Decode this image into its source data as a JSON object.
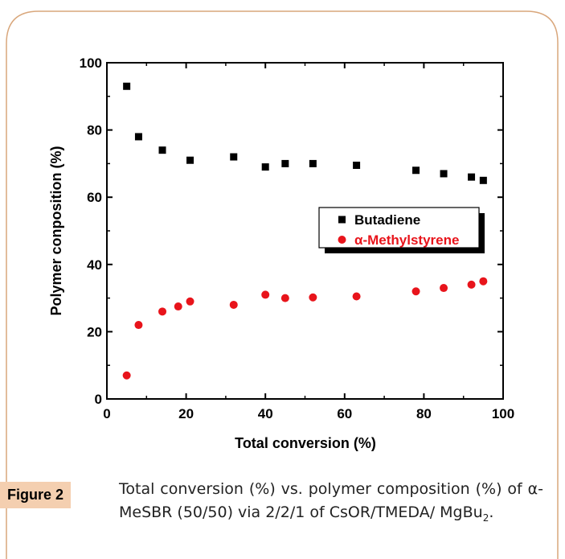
{
  "chart_data": {
    "type": "scatter",
    "xlabel": "Total conversion (%)",
    "ylabel": "Polymer conposition (%)",
    "xlim": [
      0,
      100
    ],
    "ylim": [
      0,
      100
    ],
    "xticks": [
      "0",
      "20",
      "40",
      "60",
      "80",
      "100"
    ],
    "yticks": [
      "0",
      "20",
      "40",
      "60",
      "80",
      "100"
    ],
    "grid": false,
    "legend_position": "right-middle",
    "series": [
      {
        "name": "Butadiene",
        "marker": "square",
        "color": "#000000",
        "x": [
          5,
          8,
          14,
          21,
          32,
          40,
          45,
          52,
          63,
          78,
          85,
          92,
          95
        ],
        "y": [
          93,
          78,
          74,
          71,
          72,
          69,
          70,
          70,
          69.5,
          68,
          67,
          66,
          65
        ]
      },
      {
        "name": "α-Methylstyrene",
        "marker": "circle",
        "color": "#e8141b",
        "x": [
          5,
          8,
          14,
          18,
          21,
          32,
          40,
          45,
          52,
          63,
          78,
          85,
          92,
          95
        ],
        "y": [
          7,
          22,
          26,
          27.5,
          29,
          28,
          31,
          30,
          30.2,
          30.5,
          32,
          33,
          34,
          35
        ]
      }
    ]
  },
  "caption": {
    "badge": "Figure 2",
    "text_before": "Total conversion (%) vs. polymer composition (%) of α-MeSBR (50/50) via 2/2/1 of CsOR/TMEDA/ MgBu",
    "subscript": "2",
    "text_after": "."
  },
  "colors": {
    "frame": "#d9a77c",
    "badge_bg": "#f4cfb0"
  }
}
